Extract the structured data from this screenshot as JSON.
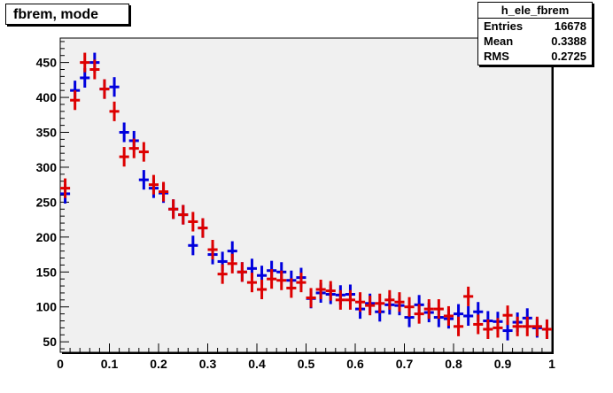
{
  "chart_data": {
    "type": "scatter",
    "title": "fbrem, mode",
    "xlabel": "",
    "ylabel": "",
    "xlim": [
      0,
      1
    ],
    "ylim": [
      35,
      485
    ],
    "x_ticks": [
      0,
      0.1,
      0.2,
      0.3,
      0.4,
      0.5,
      0.6,
      0.7,
      0.8,
      0.9,
      1
    ],
    "x_tick_labels": [
      "0",
      "0.1",
      "0.2",
      "0.3",
      "0.4",
      "0.5",
      "0.6",
      "0.7",
      "0.8",
      "0.9",
      "1"
    ],
    "y_ticks": [
      50,
      100,
      150,
      200,
      250,
      300,
      350,
      400,
      450
    ],
    "y_tick_labels": [
      "50",
      "100",
      "150",
      "200",
      "250",
      "300",
      "350",
      "400",
      "450"
    ],
    "bin_width": 0.02,
    "x": [
      0.01,
      0.03,
      0.05,
      0.07,
      0.09,
      0.11,
      0.13,
      0.15,
      0.17,
      0.19,
      0.21,
      0.23,
      0.25,
      0.27,
      0.29,
      0.31,
      0.33,
      0.35,
      0.37,
      0.39,
      0.41,
      0.43,
      0.45,
      0.47,
      0.49,
      0.51,
      0.53,
      0.55,
      0.57,
      0.59,
      0.61,
      0.63,
      0.65,
      0.67,
      0.69,
      0.71,
      0.73,
      0.75,
      0.77,
      0.79,
      0.81,
      0.83,
      0.85,
      0.87,
      0.89,
      0.91,
      0.93,
      0.95,
      0.97,
      0.99
    ],
    "series": [
      {
        "color": "#0000dd",
        "values": [
          262,
          410,
          428,
          450,
          412,
          415,
          350,
          338,
          282,
          270,
          263,
          240,
          232,
          188,
          213,
          175,
          165,
          180,
          150,
          155,
          145,
          152,
          150,
          138,
          142,
          112,
          120,
          118,
          117,
          118,
          97,
          105,
          93,
          103,
          102,
          85,
          103,
          92,
          85,
          83,
          90,
          87,
          93,
          80,
          79,
          66,
          78,
          84,
          70,
          68
        ]
      },
      {
        "color": "#dd0000",
        "values": [
          270,
          396,
          450,
          440,
          412,
          380,
          315,
          327,
          322,
          275,
          265,
          240,
          232,
          222,
          213,
          182,
          147,
          162,
          150,
          135,
          125,
          140,
          138,
          127,
          135,
          113,
          125,
          123,
          110,
          110,
          107,
          102,
          105,
          110,
          107,
          100,
          90,
          97,
          97,
          87,
          72,
          115,
          75,
          68,
          70,
          88,
          72,
          72,
          72,
          68
        ]
      }
    ],
    "error_bar_half_height": [
      14,
      14
    ]
  },
  "stats": {
    "name": "h_ele_fbrem",
    "rows": [
      {
        "label": "Entries",
        "value": "16678"
      },
      {
        "label": "Mean",
        "value": "0.3388"
      },
      {
        "label": "RMS",
        "value": "0.2725"
      }
    ]
  },
  "colors": {
    "frame_fill": "#f0f0f0",
    "axis": "#000000"
  }
}
